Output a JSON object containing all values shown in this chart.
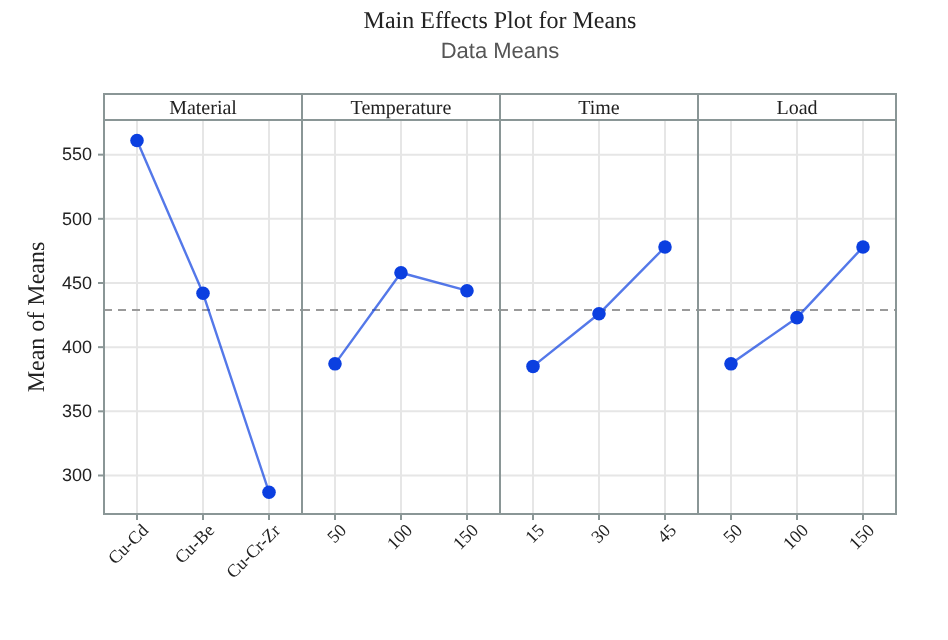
{
  "chart_data": [
    {
      "type": "line",
      "title": "Material",
      "ylabel": "Mean of Means",
      "annotations": [
        "Main Effects Plot for Means",
        "Data Means"
      ],
      "categories": [
        "Cu-Cd",
        "Cu-Be",
        "Cu-Cr-Zr"
      ],
      "series": [
        {
          "color": "#0b3fe0",
          "values": [
            561,
            442,
            287
          ]
        }
      ],
      "ylim": [
        270,
        577
      ],
      "yticks": [
        300,
        350,
        400,
        450,
        500,
        550
      ],
      "grid": true,
      "marker": "circle",
      "ref_lines": [
        {
          "axis": "y",
          "value": 429,
          "color": "#9a9a9a",
          "line_style": "dashed"
        }
      ]
    },
    {
      "type": "line",
      "title": "Temperature",
      "categories": [
        "50",
        "100",
        "150"
      ],
      "series": [
        {
          "color": "#0b3fe0",
          "values": [
            387,
            458,
            444
          ]
        }
      ],
      "ylim": [
        270,
        577
      ],
      "tick_labels": "x",
      "grid": true,
      "marker": "circle",
      "ref_lines": [
        {
          "axis": "y",
          "value": 429,
          "color": "#9a9a9a",
          "line_style": "dashed"
        }
      ]
    },
    {
      "type": "line",
      "title": "Time",
      "categories": [
        "15",
        "30",
        "45"
      ],
      "series": [
        {
          "color": "#0b3fe0",
          "values": [
            385,
            426,
            478
          ]
        }
      ],
      "ylim": [
        270,
        577
      ],
      "tick_labels": "x",
      "grid": true,
      "marker": "circle",
      "ref_lines": [
        {
          "axis": "y",
          "value": 429,
          "color": "#9a9a9a",
          "line_style": "dashed"
        }
      ]
    },
    {
      "type": "line",
      "title": "Load",
      "categories": [
        "50",
        "100",
        "150"
      ],
      "series": [
        {
          "color": "#0b3fe0",
          "values": [
            387,
            423,
            478
          ]
        }
      ],
      "ylim": [
        270,
        577
      ],
      "tick_labels": "x",
      "grid": true,
      "marker": "circle",
      "ref_lines": [
        {
          "axis": "y",
          "value": 429,
          "color": "#9a9a9a",
          "line_style": "dashed"
        }
      ]
    }
  ]
}
